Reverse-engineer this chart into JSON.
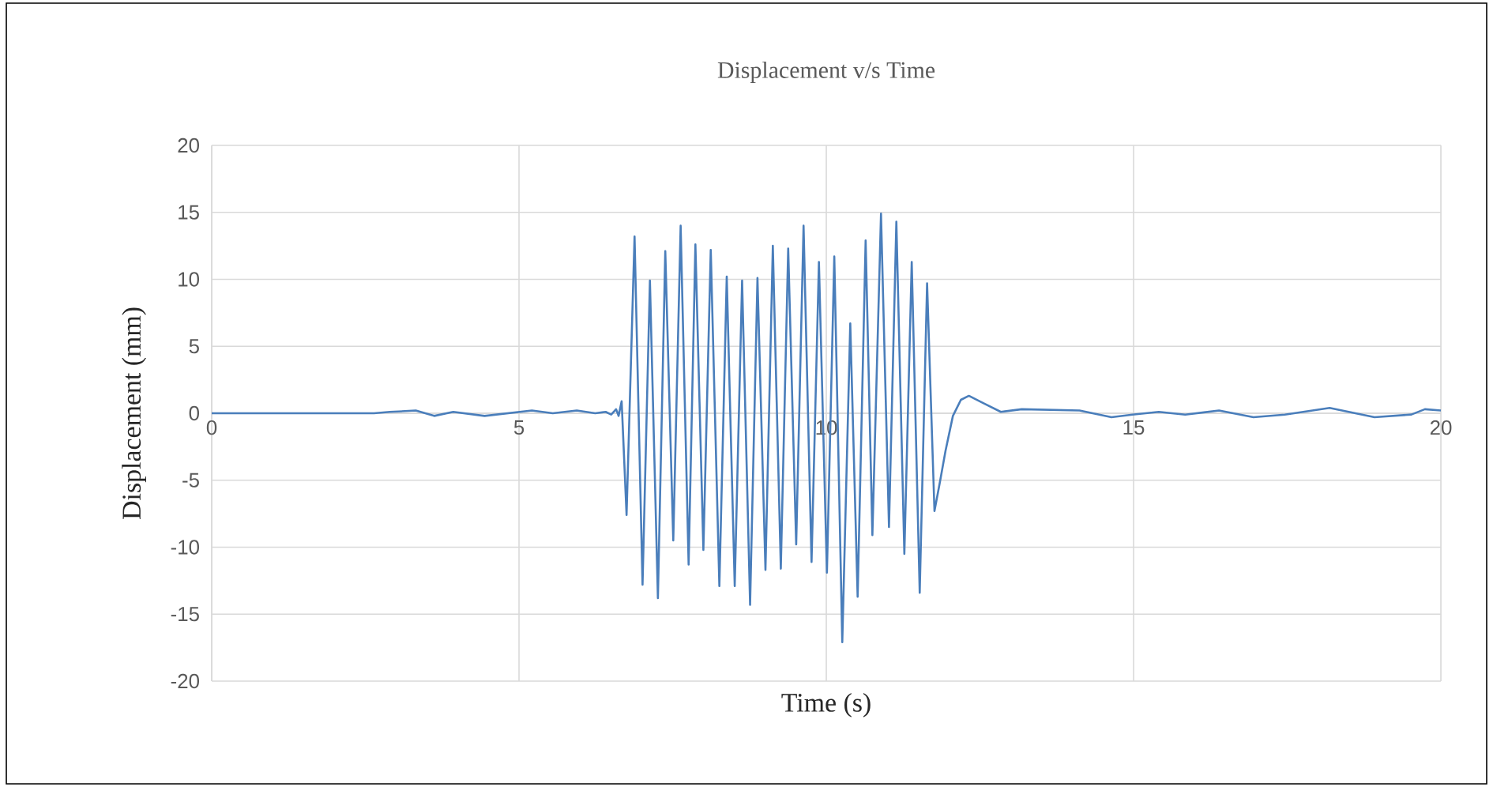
{
  "chart_data": {
    "type": "line",
    "title": "Displacement v/s Time",
    "xlabel": "Time (s)",
    "ylabel": "Displacement (mm)",
    "xlim": [
      0,
      20
    ],
    "ylim": [
      -20,
      20
    ],
    "xticks": [
      0,
      5,
      10,
      15,
      20
    ],
    "yticks": [
      -20,
      -15,
      -10,
      -5,
      0,
      5,
      10,
      15,
      20
    ],
    "grid": true,
    "marker": "none",
    "line_style": "solid",
    "series": [
      {
        "color": "#4a7ebb",
        "x": [
          0,
          2.64,
          2.9,
          3.32,
          3.62,
          3.93,
          4.44,
          5.21,
          5.55,
          5.94,
          6.24,
          6.41,
          6.5,
          6.58,
          6.62,
          6.67,
          6.75,
          6.88,
          7.01,
          7.13,
          7.26,
          7.38,
          7.51,
          7.63,
          7.76,
          7.87,
          8.0,
          8.12,
          8.26,
          8.38,
          8.51,
          8.63,
          8.76,
          8.88,
          9.01,
          9.13,
          9.26,
          9.38,
          9.51,
          9.63,
          9.76,
          9.88,
          10.01,
          10.13,
          10.26,
          10.39,
          10.51,
          10.64,
          10.75,
          10.89,
          11.02,
          11.14,
          11.27,
          11.39,
          11.52,
          11.64,
          11.76,
          11.85,
          11.94,
          12.06,
          12.19,
          12.32,
          12.49,
          12.84,
          13.18,
          14.12,
          14.64,
          14.98,
          15.41,
          15.84,
          16.39,
          16.95,
          17.46,
          18.19,
          18.92,
          19.52,
          19.74,
          20.0
        ],
        "values": [
          0,
          0,
          0.1,
          0.2,
          -0.2,
          0.1,
          -0.2,
          0.2,
          0,
          0.2,
          0,
          0.1,
          -0.1,
          0.3,
          -0.2,
          0.9,
          -7.6,
          13.2,
          -12.8,
          9.9,
          -13.8,
          12.1,
          -9.5,
          14.0,
          -11.3,
          12.6,
          -10.2,
          12.2,
          -12.9,
          10.2,
          -12.9,
          9.9,
          -14.3,
          10.1,
          -11.7,
          12.5,
          -11.6,
          12.3,
          -9.8,
          14.0,
          -11.1,
          11.3,
          -11.9,
          11.7,
          -17.1,
          6.7,
          -13.7,
          12.9,
          -9.1,
          14.9,
          -8.5,
          14.3,
          -10.5,
          11.3,
          -13.4,
          9.7,
          -7.3,
          -5.1,
          -2.8,
          -0.2,
          1.0,
          1.3,
          0.9,
          0.1,
          0.3,
          0.2,
          -0.3,
          -0.1,
          0.1,
          -0.1,
          0.2,
          -0.3,
          -0.1,
          0.4,
          -0.3,
          -0.1,
          0.3,
          0.2
        ]
      }
    ]
  }
}
